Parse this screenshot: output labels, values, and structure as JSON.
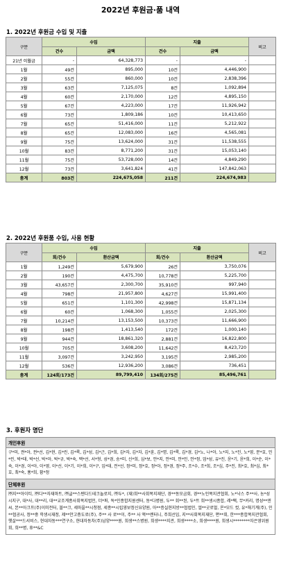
{
  "title": "2022년 후원금·품 내역",
  "section1": {
    "heading": "1. 2022년 후원금 수입 및 지출",
    "h_category": "구분",
    "h_income": "수입",
    "h_expense": "지출",
    "h_note": "비고",
    "h_count": "건수",
    "h_amount": "금액",
    "rows": [
      {
        "label": "21년 이월금",
        "ic": "-",
        "ia": "64,328,773",
        "ec": "-",
        "ea": "-"
      },
      {
        "label": "1월",
        "ic": "49건",
        "ia": "895,000",
        "ec": "10건",
        "ea": "4,446,900"
      },
      {
        "label": "2월",
        "ic": "55건",
        "ia": "860,000",
        "ec": "10건",
        "ea": "2,838,396"
      },
      {
        "label": "3월",
        "ic": "63건",
        "ia": "7,125,075",
        "ec": "8건",
        "ea": "1,092,894"
      },
      {
        "label": "4월",
        "ic": "60건",
        "ia": "2,170,000",
        "ec": "12건",
        "ea": "4,895,150"
      },
      {
        "label": "5월",
        "ic": "67건",
        "ia": "4,223,000",
        "ec": "17건",
        "ea": "11,926,942"
      },
      {
        "label": "6월",
        "ic": "73건",
        "ia": "1,809,186",
        "ec": "10건",
        "ea": "10,413,650"
      },
      {
        "label": "7월",
        "ic": "65건",
        "ia": "51,416,000",
        "ec": "11건",
        "ea": "5,212,922"
      },
      {
        "label": "8월",
        "ic": "65건",
        "ia": "12,083,000",
        "ec": "16건",
        "ea": "4,565,081"
      },
      {
        "label": "9월",
        "ic": "75건",
        "ia": "13,624,000",
        "ec": "31건",
        "ea": "11,538,555"
      },
      {
        "label": "10월",
        "ic": "83건",
        "ia": "8,771,200",
        "ec": "31건",
        "ea": "15,053,140"
      },
      {
        "label": "11월",
        "ic": "75건",
        "ia": "53,728,000",
        "ec": "14건",
        "ea": "4,849,290"
      },
      {
        "label": "12월",
        "ic": "73건",
        "ia": "3,641,824",
        "ec": "41건",
        "ea": "147,842,063"
      }
    ],
    "total": {
      "label": "총계",
      "ic": "803건",
      "ia": "224,675,058",
      "ec": "211건",
      "ea": "224,674,983"
    }
  },
  "section2": {
    "heading": "2. 2022년 후원품 수입, 사용 현황",
    "h_category": "구분",
    "h_income": "수입",
    "h_expense": "지출",
    "h_note": "비고",
    "h_count": "회/건수",
    "h_amount": "환산금액",
    "rows": [
      {
        "label": "1월",
        "ic": "1,249건",
        "ia": "5,679,900",
        "ec": "26건",
        "ea": "3,750,076"
      },
      {
        "label": "2월",
        "ic": "190건",
        "ia": "4,475,700",
        "ec": "10,778건",
        "ea": "5,225,700"
      },
      {
        "label": "3월",
        "ic": "43,657건",
        "ia": "2,300,700",
        "ec": "35,910건",
        "ea": "997,940"
      },
      {
        "label": "4월",
        "ic": "798건",
        "ia": "21,957,800",
        "ec": "4,627건",
        "ea": "15,991,400"
      },
      {
        "label": "5월",
        "ic": "651건",
        "ia": "1,101,300",
        "ec": "42,998건",
        "ea": "15,871,134"
      },
      {
        "label": "6월",
        "ic": "60건",
        "ia": "1,068,300",
        "ec": "1,055건",
        "ea": "2,025,300"
      },
      {
        "label": "7월",
        "ic": "10,214건",
        "ia": "13,153,500",
        "ec": "10,373건",
        "ea": "11,666,900"
      },
      {
        "label": "8월",
        "ic": "198건",
        "ia": "1,413,540",
        "ec": "172건",
        "ea": "1,000,140"
      },
      {
        "label": "9월",
        "ic": "944건",
        "ia": "18,861,320",
        "ec": "2,881건",
        "ea": "16,822,800"
      },
      {
        "label": "10월",
        "ic": "705건",
        "ia": "3,608,200",
        "ec": "11,642건",
        "ea": "8,423,720"
      },
      {
        "label": "11월",
        "ic": "3,097건",
        "ia": "3,242,950",
        "ec": "3,195건",
        "ea": "2,985,200"
      },
      {
        "label": "12월",
        "ic": "536건",
        "ia": "12,936,200",
        "ec": "3,086건",
        "ea": "736,451"
      }
    ],
    "total": {
      "label": "총계",
      "ic": "124회/173건",
      "ia": "89,799,410",
      "ec": "134회/275건",
      "ea": "85,496,761"
    }
  },
  "section3": {
    "heading": "3. 후원자 명단",
    "individual_label": "개인후원",
    "individual_names": "구*미, 권*아, 권*선, 김*현, 김*린, 김*록, 김*성, 김*근, 김*희, 김*자, 김*자, 김*훈, 김*명, 김*록, 김*경, 김*노, 나*아, 노*지, 노*진, 노*영, 문*호, 민*린, 박*태, 박*선, 박*아, 박*규, 박*숙, 백*선, 서*형, 성*경, 송*미, 신*희, 심*보, 안*지, 안*미, 안*민, 안*정, 엄*성, 유*진, 윤*기, 윤*희, 이*순, 이*숙, 이*경, 이*아, 이*영, 이*선, 이*기, 이*희, 이*구, 임*태, 전*선, 정*미, 정*호, 정*아, 정*경, 정*주, 조*수, 조*희, 조*심, 주*진, 최*호, 최*심, 최*호, 최*숙, 홍*희, 황*정",
    "group_label": "단체후원",
    "group_names": "㈜지**아이티, ㈜디**자재마트, ㈜글**스텐다드테크놀로지, ㈜두*, (재)희**사회복지재단, 경**동모금회, 경**노인복지관협회, 노*낙스 주**사, 농*성시지구, 대*사, 대**리, 대**교조계종사회복지법인, 더*퍼, 독*인종합지원센터, 동*다병원, 두** 회**된, 두*트 희**생시종합, 레*팩, 무*커리, 명성**엔씨, 본**아크프(주)이미전터, 블**크, 세마을**시청점, 세종**시립영보정신요양원, 아**증실현지방**협법인, 엘**굿로벌, 온*모드 컷, 유*해기계(주), 인**협공사, 정**중 학생시재정, 제**안고층도로(주), 주** 사 로**이, 주** 사 액**렌터니, 주희선임, 지**사회복지재단, 편**회, 한***종합복지관협회, 햇살***드서비스, 현대자동***연구소, 현대자동차(주)남양****원, 희생**스병원, 희생****지관, 희생****소, 희생****원, 희생시********자은영위원회, 희**병, 휴**&C"
  }
}
